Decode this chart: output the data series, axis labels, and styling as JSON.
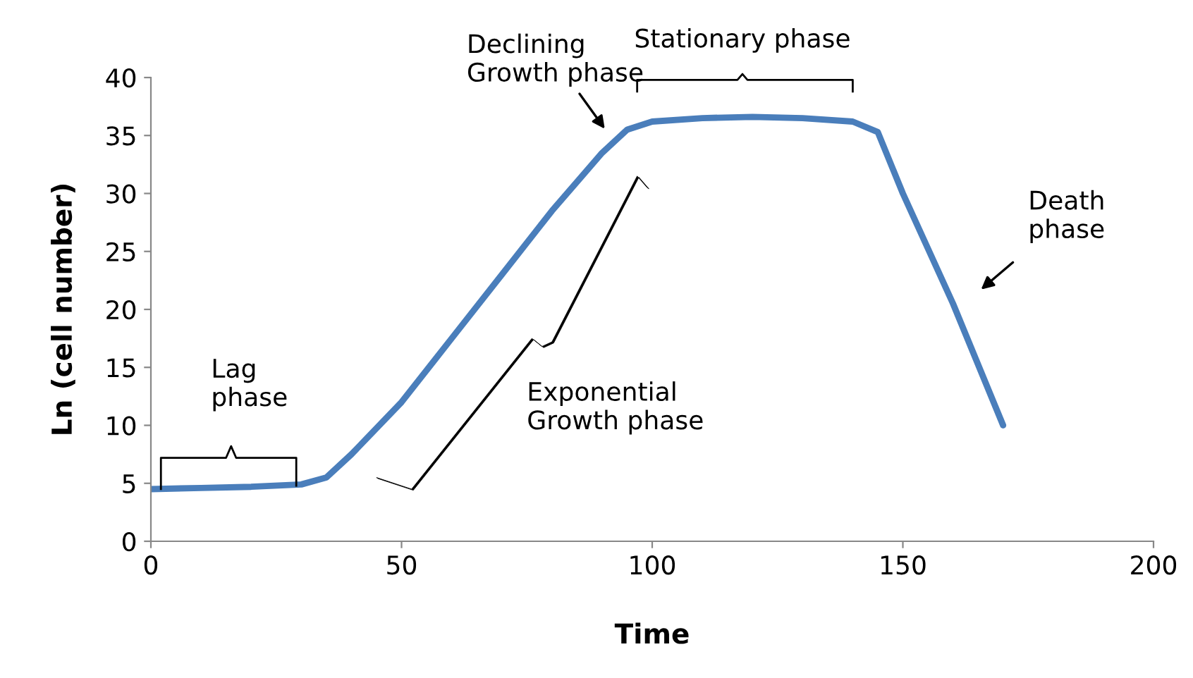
{
  "chart_data": {
    "type": "line",
    "xlabel": "Time",
    "ylabel": "Ln (cell number)",
    "x": [
      0,
      10,
      20,
      30,
      35,
      40,
      50,
      60,
      70,
      80,
      90,
      95,
      100,
      110,
      120,
      130,
      140,
      145,
      150,
      160,
      170
    ],
    "series": [
      {
        "color": "#4a7ebb",
        "values": [
          4.5,
          4.6,
          4.7,
          4.9,
          5.5,
          7.5,
          12,
          17.5,
          23,
          28.5,
          33.5,
          35.5,
          36.2,
          36.5,
          36.6,
          36.5,
          36.2,
          35.3,
          30,
          20.5,
          10
        ]
      }
    ],
    "xlim": [
      0,
      200
    ],
    "xticks": [
      0,
      50,
      100,
      150,
      200
    ],
    "ylim": [
      0,
      40
    ],
    "yticks": [
      0,
      5,
      10,
      15,
      20,
      25,
      30,
      35,
      40
    ],
    "grid": false,
    "legend": false,
    "marker": "none",
    "line_style": "solid",
    "annotations": [
      "Lag\nphase",
      "Declining\nGrowth phase",
      "Stationary phase",
      "Exponential\nGrowth phase",
      "Death\nphase"
    ]
  }
}
